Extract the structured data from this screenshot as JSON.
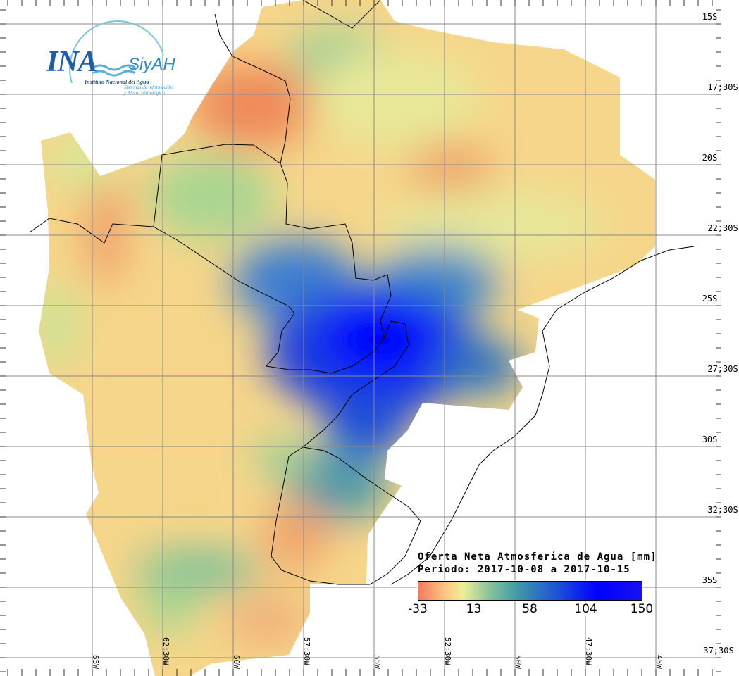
{
  "legend": {
    "title": "Oferta Neta Atmosferica de Agua [mm]",
    "period": "Periodo: 2017-10-08 a 2017-10-15",
    "ticks": [
      "-33",
      "13",
      "58",
      "104",
      "150"
    ],
    "colors": [
      "#f47c5a",
      "#fbc786",
      "#eeef95",
      "#84c49a",
      "#3e97a8",
      "#1e52d6",
      "#0000ff"
    ]
  },
  "logo": {
    "name": "INA",
    "brand": "SiyAH",
    "subtitle": "Instituto Nacional del Agua",
    "tagline1": "Sistemas de información",
    "tagline2": "y Alerta Hidrológico"
  },
  "lat_labels": [
    "15S",
    "17;30S",
    "20S",
    "22;30S",
    "25S",
    "27;30S",
    "30S",
    "32;30S",
    "35S",
    "37;30S"
  ],
  "lon_labels": [
    "65W",
    "62:30W",
    "60W",
    "57:30W",
    "55W",
    "52:30W",
    "50W",
    "47:30W",
    "45W"
  ]
}
